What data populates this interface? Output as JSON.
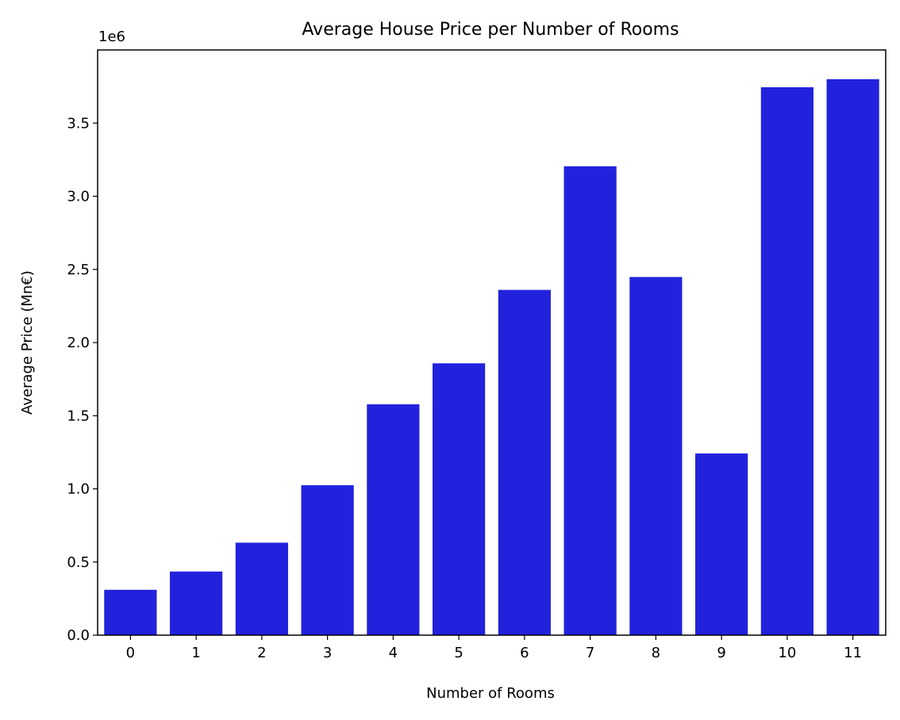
{
  "chart_data": {
    "type": "bar",
    "title": "Average House Price per Number of Rooms",
    "xlabel": "Number of Rooms",
    "ylabel": "Average Price (Mn€)",
    "y_offset_label": "1e6",
    "categories": [
      "0",
      "1",
      "2",
      "3",
      "4",
      "5",
      "6",
      "7",
      "8",
      "9",
      "10",
      "11"
    ],
    "values": [
      310000,
      435000,
      632000,
      1025000,
      1578000,
      1858000,
      2360000,
      3205000,
      2448000,
      1242000,
      3745000,
      3800000
    ],
    "ylim": [
      0,
      4000000
    ],
    "yticks": [
      0,
      500000,
      1000000,
      1500000,
      2000000,
      2500000,
      3000000,
      3500000
    ],
    "ytick_labels": [
      "0.0",
      "0.5",
      "1.0",
      "1.5",
      "2.0",
      "2.5",
      "3.0",
      "3.5"
    ],
    "bar_color": "#2222dd",
    "grid": false,
    "legend": "none"
  }
}
